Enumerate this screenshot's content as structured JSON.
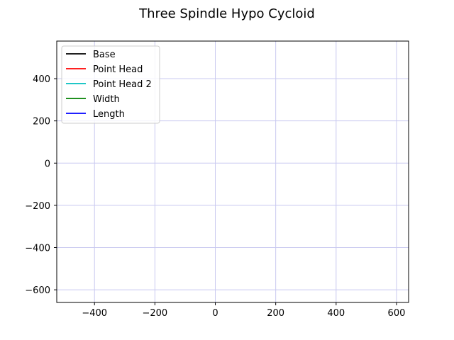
{
  "chart_data": {
    "type": "line",
    "title": "Three Spindle Hypo Cycloid",
    "xlabel": "",
    "ylabel": "",
    "xlim": [
      -525,
      640
    ],
    "ylim": [
      -660,
      578
    ],
    "xticks": [
      -400,
      -200,
      0,
      200,
      400,
      600
    ],
    "yticks": [
      400,
      200,
      0,
      -200,
      -400,
      -600
    ],
    "xtick_labels": [
      "−400",
      "−200",
      "0",
      "200",
      "400",
      "600"
    ],
    "ytick_labels": [
      "400",
      "200",
      "0",
      "−200",
      "−400",
      "−600"
    ],
    "grid": true,
    "grid_color": "#c9c9f0",
    "legend_position": "top-left",
    "series": [
      {
        "name": "Base",
        "color": "#000000",
        "x": [],
        "y": []
      },
      {
        "name": "Point Head",
        "color": "#ff0000",
        "x": [],
        "y": []
      },
      {
        "name": "Point Head 2",
        "color": "#00bfbf",
        "x": [],
        "y": []
      },
      {
        "name": "Width",
        "color": "#008000",
        "x": [],
        "y": []
      },
      {
        "name": "Length",
        "color": "#0000ff",
        "x": [],
        "y": []
      }
    ]
  }
}
